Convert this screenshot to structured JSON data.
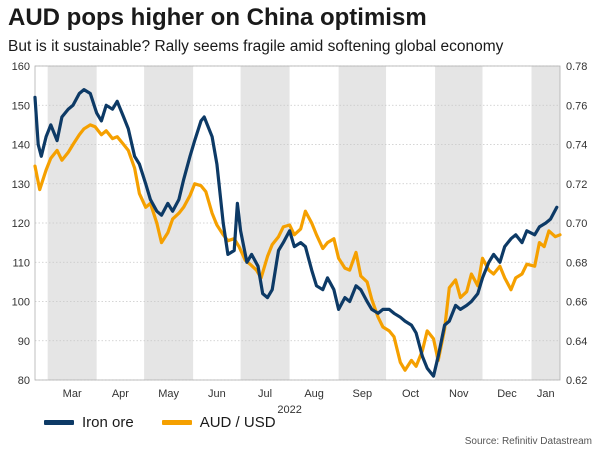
{
  "title": "AUD pops higher on China optimism",
  "subtitle": "But is it sustainable? Rally seems fragile amid softening global economy",
  "source": "Source: Refinitiv Datastream",
  "colors": {
    "iron_ore": "#0d3a66",
    "aud_usd": "#f5a000",
    "shade": "#e5e5e5",
    "grid": "#c8c8c8"
  },
  "chart_data": {
    "type": "line",
    "year_label": "2022",
    "months": [
      "Mar",
      "Apr",
      "May",
      "Jun",
      "Jul",
      "Aug",
      "Sep",
      "Oct",
      "Nov",
      "Dec",
      "Jan"
    ],
    "x_range": [
      "2022-02-21",
      "2023-01-19"
    ],
    "shaded_months": [
      "Mar",
      "May",
      "Jul",
      "Sep",
      "Nov",
      "Jan"
    ],
    "left_axis": {
      "ticks": [
        80,
        90,
        100,
        110,
        120,
        130,
        140,
        150,
        160
      ],
      "ylim": [
        80,
        160
      ]
    },
    "right_axis": {
      "ticks": [
        "0.62",
        "0.64",
        "0.66",
        "0.68",
        "0.70",
        "0.72",
        "0.74",
        "0.76",
        "0.78"
      ],
      "ylim": [
        0.62,
        0.78
      ]
    },
    "grid": true,
    "legend_position": "bottom-left",
    "series": [
      {
        "name": "Iron ore",
        "axis": "left",
        "color": "#0d3a66",
        "points": [
          [
            "2022-02-21",
            152
          ],
          [
            "2022-02-23",
            140
          ],
          [
            "2022-02-25",
            137
          ],
          [
            "2022-02-28",
            142
          ],
          [
            "2022-03-03",
            145
          ],
          [
            "2022-03-07",
            141
          ],
          [
            "2022-03-10",
            147
          ],
          [
            "2022-03-14",
            149
          ],
          [
            "2022-03-17",
            150
          ],
          [
            "2022-03-21",
            153
          ],
          [
            "2022-03-24",
            154
          ],
          [
            "2022-03-28",
            153
          ],
          [
            "2022-04-01",
            148
          ],
          [
            "2022-04-04",
            146
          ],
          [
            "2022-04-07",
            150
          ],
          [
            "2022-04-11",
            149
          ],
          [
            "2022-04-14",
            151
          ],
          [
            "2022-04-18",
            147
          ],
          [
            "2022-04-21",
            144
          ],
          [
            "2022-04-25",
            137
          ],
          [
            "2022-04-28",
            135
          ],
          [
            "2022-05-02",
            130
          ],
          [
            "2022-05-05",
            126
          ],
          [
            "2022-05-09",
            123
          ],
          [
            "2022-05-12",
            122
          ],
          [
            "2022-05-16",
            125
          ],
          [
            "2022-05-19",
            123
          ],
          [
            "2022-05-23",
            126
          ],
          [
            "2022-05-26",
            131
          ],
          [
            "2022-05-30",
            137
          ],
          [
            "2022-06-02",
            141
          ],
          [
            "2022-06-06",
            146
          ],
          [
            "2022-06-08",
            147
          ],
          [
            "2022-06-13",
            142
          ],
          [
            "2022-06-16",
            135
          ],
          [
            "2022-06-20",
            120
          ],
          [
            "2022-06-23",
            112
          ],
          [
            "2022-06-27",
            113
          ],
          [
            "2022-06-29",
            125
          ],
          [
            "2022-07-01",
            118
          ],
          [
            "2022-07-05",
            110
          ],
          [
            "2022-07-08",
            112
          ],
          [
            "2022-07-12",
            109
          ],
          [
            "2022-07-15",
            102
          ],
          [
            "2022-07-18",
            101
          ],
          [
            "2022-07-21",
            103
          ],
          [
            "2022-07-25",
            113
          ],
          [
            "2022-07-28",
            115
          ],
          [
            "2022-08-01",
            118
          ],
          [
            "2022-08-04",
            114
          ],
          [
            "2022-08-08",
            115
          ],
          [
            "2022-08-11",
            114
          ],
          [
            "2022-08-15",
            108
          ],
          [
            "2022-08-18",
            104
          ],
          [
            "2022-08-22",
            103
          ],
          [
            "2022-08-25",
            106
          ],
          [
            "2022-08-29",
            103
          ],
          [
            "2022-09-01",
            98
          ],
          [
            "2022-09-05",
            101
          ],
          [
            "2022-09-08",
            100
          ],
          [
            "2022-09-12",
            104
          ],
          [
            "2022-09-15",
            103
          ],
          [
            "2022-09-19",
            100
          ],
          [
            "2022-09-22",
            98
          ],
          [
            "2022-09-26",
            97
          ],
          [
            "2022-09-29",
            98
          ],
          [
            "2022-10-03",
            98
          ],
          [
            "2022-10-06",
            97
          ],
          [
            "2022-10-10",
            96
          ],
          [
            "2022-10-13",
            95
          ],
          [
            "2022-10-17",
            94
          ],
          [
            "2022-10-20",
            92
          ],
          [
            "2022-10-24",
            86
          ],
          [
            "2022-10-27",
            83
          ],
          [
            "2022-10-31",
            81
          ],
          [
            "2022-11-03",
            86
          ],
          [
            "2022-11-07",
            94
          ],
          [
            "2022-11-10",
            95
          ],
          [
            "2022-11-14",
            99
          ],
          [
            "2022-11-17",
            98
          ],
          [
            "2022-11-21",
            99
          ],
          [
            "2022-11-24",
            100
          ],
          [
            "2022-11-28",
            102
          ],
          [
            "2022-12-01",
            106
          ],
          [
            "2022-12-05",
            110
          ],
          [
            "2022-12-08",
            112
          ],
          [
            "2022-12-12",
            110
          ],
          [
            "2022-12-15",
            114
          ],
          [
            "2022-12-19",
            116
          ],
          [
            "2022-12-22",
            117
          ],
          [
            "2022-12-26",
            115
          ],
          [
            "2022-12-29",
            118
          ],
          [
            "2023-01-03",
            117
          ],
          [
            "2023-01-06",
            119
          ],
          [
            "2023-01-10",
            120
          ],
          [
            "2023-01-13",
            121
          ],
          [
            "2023-01-17",
            124
          ]
        ]
      },
      {
        "name": "AUD / USD",
        "axis": "right",
        "color": "#f5a000",
        "points": [
          [
            "2022-02-21",
            0.729
          ],
          [
            "2022-02-24",
            0.717
          ],
          [
            "2022-02-28",
            0.727
          ],
          [
            "2022-03-03",
            0.733
          ],
          [
            "2022-03-07",
            0.737
          ],
          [
            "2022-03-10",
            0.732
          ],
          [
            "2022-03-14",
            0.736
          ],
          [
            "2022-03-17",
            0.74
          ],
          [
            "2022-03-21",
            0.745
          ],
          [
            "2022-03-24",
            0.748
          ],
          [
            "2022-03-28",
            0.75
          ],
          [
            "2022-03-31",
            0.749
          ],
          [
            "2022-04-04",
            0.745
          ],
          [
            "2022-04-07",
            0.747
          ],
          [
            "2022-04-11",
            0.743
          ],
          [
            "2022-04-14",
            0.744
          ],
          [
            "2022-04-18",
            0.74
          ],
          [
            "2022-04-21",
            0.737
          ],
          [
            "2022-04-25",
            0.728
          ],
          [
            "2022-04-28",
            0.715
          ],
          [
            "2022-05-02",
            0.708
          ],
          [
            "2022-05-05",
            0.71
          ],
          [
            "2022-05-09",
            0.7
          ],
          [
            "2022-05-12",
            0.69
          ],
          [
            "2022-05-16",
            0.695
          ],
          [
            "2022-05-19",
            0.702
          ],
          [
            "2022-05-23",
            0.705
          ],
          [
            "2022-05-26",
            0.708
          ],
          [
            "2022-05-30",
            0.714
          ],
          [
            "2022-06-02",
            0.72
          ],
          [
            "2022-06-06",
            0.719
          ],
          [
            "2022-06-09",
            0.716
          ],
          [
            "2022-06-13",
            0.705
          ],
          [
            "2022-06-16",
            0.699
          ],
          [
            "2022-06-20",
            0.694
          ],
          [
            "2022-06-23",
            0.691
          ],
          [
            "2022-06-27",
            0.692
          ],
          [
            "2022-06-30",
            0.688
          ],
          [
            "2022-07-04",
            0.681
          ],
          [
            "2022-07-07",
            0.679
          ],
          [
            "2022-07-11",
            0.676
          ],
          [
            "2022-07-14",
            0.672
          ],
          [
            "2022-07-18",
            0.683
          ],
          [
            "2022-07-21",
            0.689
          ],
          [
            "2022-07-25",
            0.693
          ],
          [
            "2022-07-28",
            0.698
          ],
          [
            "2022-08-01",
            0.699
          ],
          [
            "2022-08-04",
            0.694
          ],
          [
            "2022-08-08",
            0.697
          ],
          [
            "2022-08-11",
            0.706
          ],
          [
            "2022-08-15",
            0.7
          ],
          [
            "2022-08-18",
            0.694
          ],
          [
            "2022-08-22",
            0.687
          ],
          [
            "2022-08-25",
            0.69
          ],
          [
            "2022-08-29",
            0.692
          ],
          [
            "2022-09-01",
            0.682
          ],
          [
            "2022-09-05",
            0.677
          ],
          [
            "2022-09-08",
            0.676
          ],
          [
            "2022-09-12",
            0.685
          ],
          [
            "2022-09-15",
            0.673
          ],
          [
            "2022-09-19",
            0.67
          ],
          [
            "2022-09-22",
            0.661
          ],
          [
            "2022-09-26",
            0.652
          ],
          [
            "2022-09-29",
            0.647
          ],
          [
            "2022-10-03",
            0.645
          ],
          [
            "2022-10-06",
            0.642
          ],
          [
            "2022-10-10",
            0.629
          ],
          [
            "2022-10-13",
            0.625
          ],
          [
            "2022-10-17",
            0.63
          ],
          [
            "2022-10-20",
            0.627
          ],
          [
            "2022-10-24",
            0.635
          ],
          [
            "2022-10-27",
            0.645
          ],
          [
            "2022-10-31",
            0.641
          ],
          [
            "2022-11-03",
            0.63
          ],
          [
            "2022-11-07",
            0.646
          ],
          [
            "2022-11-10",
            0.667
          ],
          [
            "2022-11-14",
            0.671
          ],
          [
            "2022-11-17",
            0.662
          ],
          [
            "2022-11-21",
            0.665
          ],
          [
            "2022-11-24",
            0.674
          ],
          [
            "2022-11-28",
            0.668
          ],
          [
            "2022-12-01",
            0.682
          ],
          [
            "2022-12-05",
            0.676
          ],
          [
            "2022-12-08",
            0.674
          ],
          [
            "2022-12-12",
            0.678
          ],
          [
            "2022-12-15",
            0.672
          ],
          [
            "2022-12-19",
            0.666
          ],
          [
            "2022-12-22",
            0.672
          ],
          [
            "2022-12-26",
            0.674
          ],
          [
            "2022-12-29",
            0.679
          ],
          [
            "2023-01-03",
            0.678
          ],
          [
            "2023-01-06",
            0.69
          ],
          [
            "2023-01-09",
            0.688
          ],
          [
            "2023-01-12",
            0.696
          ],
          [
            "2023-01-16",
            0.693
          ],
          [
            "2023-01-19",
            0.694
          ]
        ]
      }
    ]
  }
}
